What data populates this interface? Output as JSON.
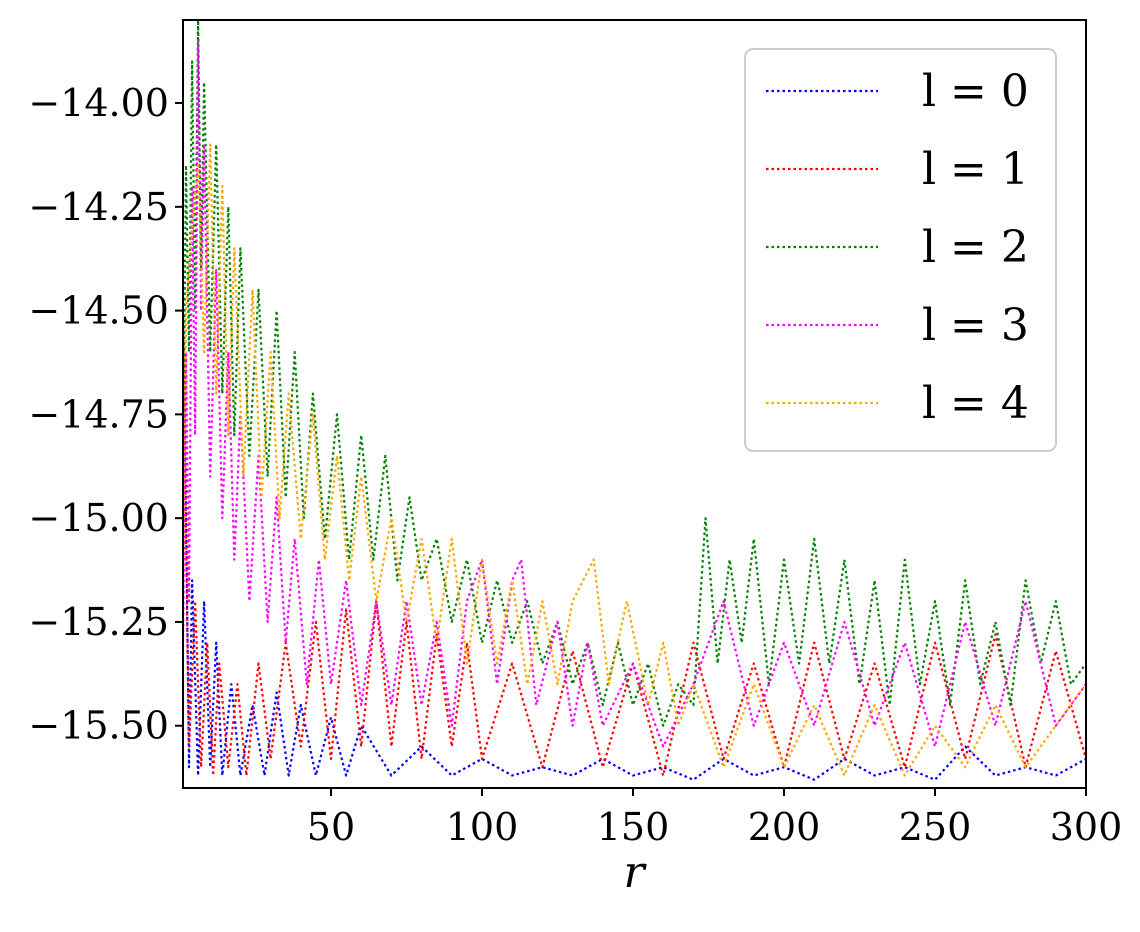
{
  "chart_data": {
    "type": "line",
    "title": "",
    "xlabel": "r",
    "ylabel": "",
    "xlim": [
      1,
      300
    ],
    "ylim": [
      -15.65,
      -13.8
    ],
    "xticks": [
      50,
      100,
      150,
      200,
      250,
      300
    ],
    "xtick_labels": [
      "50",
      "100",
      "150",
      "200",
      "250",
      "300"
    ],
    "yticks": [
      -14.0,
      -14.25,
      -14.5,
      -14.75,
      -15.0,
      -15.25,
      -15.5
    ],
    "ytick_labels": [
      "−14.00",
      "−14.25",
      "−14.50",
      "−14.75",
      "−15.00",
      "−15.25",
      "−15.50"
    ],
    "grid": false,
    "legend_position": "top-right",
    "line_style": "dotted",
    "series": [
      {
        "name": "l = 0",
        "color": "#0000ff",
        "x": [
          1,
          3,
          4,
          6,
          8,
          10,
          12,
          14,
          17,
          20,
          24,
          28,
          32,
          36,
          40,
          45,
          50,
          55,
          60,
          70,
          80,
          90,
          100,
          110,
          120,
          130,
          140,
          150,
          160,
          170,
          180,
          190,
          200,
          210,
          220,
          230,
          240,
          250,
          260,
          270,
          280,
          290,
          300
        ],
        "values": [
          -14.35,
          -15.6,
          -15.15,
          -15.62,
          -15.2,
          -15.6,
          -15.3,
          -15.62,
          -15.4,
          -15.62,
          -15.45,
          -15.62,
          -15.42,
          -15.62,
          -15.45,
          -15.62,
          -15.48,
          -15.62,
          -15.5,
          -15.62,
          -15.55,
          -15.62,
          -15.58,
          -15.62,
          -15.6,
          -15.62,
          -15.58,
          -15.62,
          -15.6,
          -15.63,
          -15.58,
          -15.62,
          -15.6,
          -15.63,
          -15.58,
          -15.62,
          -15.6,
          -15.63,
          -15.55,
          -15.62,
          -15.6,
          -15.62,
          -15.58
        ]
      },
      {
        "name": "l = 1",
        "color": "#ff0000",
        "x": [
          1,
          3,
          5,
          7,
          9,
          11,
          13,
          16,
          19,
          22,
          26,
          30,
          35,
          40,
          45,
          50,
          55,
          60,
          65,
          70,
          75,
          80,
          85,
          90,
          95,
          100,
          110,
          120,
          130,
          140,
          150,
          160,
          170,
          180,
          190,
          200,
          210,
          220,
          230,
          240,
          250,
          260,
          270,
          280,
          290,
          300
        ],
        "values": [
          -14.5,
          -15.55,
          -15.2,
          -15.6,
          -15.3,
          -15.62,
          -15.35,
          -15.6,
          -15.4,
          -15.62,
          -15.35,
          -15.58,
          -15.3,
          -15.55,
          -15.25,
          -15.58,
          -15.22,
          -15.55,
          -15.2,
          -15.55,
          -15.25,
          -15.58,
          -15.28,
          -15.55,
          -15.3,
          -15.58,
          -15.35,
          -15.6,
          -15.32,
          -15.6,
          -15.35,
          -15.62,
          -15.3,
          -15.58,
          -15.35,
          -15.6,
          -15.3,
          -15.58,
          -15.35,
          -15.6,
          -15.3,
          -15.58,
          -15.28,
          -15.6,
          -15.32,
          -15.58
        ]
      },
      {
        "name": "l = 2",
        "color": "#008000",
        "x": [
          1,
          2,
          3,
          4,
          5,
          6,
          7,
          8,
          10,
          12,
          14,
          16,
          18,
          20,
          23,
          26,
          29,
          32,
          35,
          38,
          41,
          44,
          48,
          52,
          56,
          60,
          64,
          68,
          72,
          76,
          80,
          85,
          90,
          95,
          100,
          105,
          110,
          115,
          120,
          125,
          130,
          135,
          140,
          145,
          150,
          155,
          160,
          165,
          170,
          174,
          178,
          182,
          186,
          190,
          195,
          200,
          205,
          210,
          215,
          220,
          225,
          230,
          235,
          240,
          245,
          250,
          255,
          260,
          265,
          270,
          275,
          280,
          285,
          290,
          295,
          300
        ],
        "values": [
          -14.9,
          -14.15,
          -14.6,
          -13.9,
          -14.5,
          -13.8,
          -14.4,
          -13.95,
          -14.6,
          -14.1,
          -14.7,
          -14.25,
          -14.8,
          -14.35,
          -14.85,
          -14.45,
          -14.9,
          -14.5,
          -14.95,
          -14.6,
          -15.0,
          -14.7,
          -15.05,
          -14.75,
          -15.1,
          -14.8,
          -15.1,
          -14.85,
          -15.15,
          -14.95,
          -15.15,
          -15.05,
          -15.25,
          -15.1,
          -15.3,
          -15.15,
          -15.3,
          -15.2,
          -15.35,
          -15.25,
          -15.4,
          -15.3,
          -15.45,
          -15.3,
          -15.45,
          -15.35,
          -15.5,
          -15.4,
          -15.45,
          -15.0,
          -15.35,
          -15.1,
          -15.3,
          -15.05,
          -15.4,
          -15.1,
          -15.35,
          -15.05,
          -15.35,
          -15.1,
          -15.4,
          -15.15,
          -15.45,
          -15.1,
          -15.4,
          -15.2,
          -15.45,
          -15.15,
          -15.4,
          -15.25,
          -15.45,
          -15.15,
          -15.35,
          -15.2,
          -15.4,
          -15.35
        ]
      },
      {
        "name": "l = 3",
        "color": "#ff00ff",
        "x": [
          1,
          2,
          3,
          4,
          5,
          6,
          7,
          8,
          10,
          12,
          14,
          16,
          18,
          20,
          23,
          26,
          29,
          32,
          35,
          38,
          42,
          46,
          50,
          55,
          60,
          65,
          70,
          75,
          80,
          85,
          90,
          95,
          100,
          105,
          110,
          113,
          118,
          125,
          130,
          135,
          140,
          150,
          160,
          170,
          180,
          190,
          200,
          210,
          220,
          230,
          240,
          250,
          260,
          270,
          280,
          290,
          300
        ],
        "values": [
          -15.3,
          -14.6,
          -15.2,
          -14.2,
          -14.8,
          -13.85,
          -14.5,
          -14.1,
          -14.9,
          -14.4,
          -15.0,
          -14.6,
          -15.1,
          -14.75,
          -15.2,
          -14.85,
          -15.25,
          -14.95,
          -15.3,
          -15.05,
          -15.4,
          -15.1,
          -15.4,
          -15.15,
          -15.45,
          -15.2,
          -15.45,
          -15.2,
          -15.45,
          -15.25,
          -15.5,
          -15.2,
          -15.1,
          -15.4,
          -15.15,
          -15.1,
          -15.45,
          -15.25,
          -15.5,
          -15.3,
          -15.5,
          -15.35,
          -15.55,
          -15.4,
          -15.2,
          -15.5,
          -15.3,
          -15.5,
          -15.25,
          -15.5,
          -15.3,
          -15.55,
          -15.25,
          -15.5,
          -15.2,
          -15.5,
          -15.4
        ]
      },
      {
        "name": "l = 4",
        "color": "#ffa500",
        "x": [
          1,
          2,
          4,
          6,
          8,
          10,
          12,
          14,
          16,
          18,
          21,
          24,
          27,
          30,
          33,
          36,
          40,
          44,
          48,
          52,
          56,
          60,
          65,
          70,
          75,
          80,
          85,
          90,
          95,
          100,
          105,
          110,
          115,
          120,
          125,
          130,
          137,
          142,
          148,
          155,
          160,
          165,
          170,
          180,
          190,
          200,
          210,
          220,
          230,
          240,
          250,
          260,
          270,
          280,
          290,
          300
        ],
        "values": [
          -15.2,
          -14.5,
          -14.3,
          -14.15,
          -14.6,
          -14.1,
          -14.7,
          -14.2,
          -14.8,
          -14.35,
          -14.9,
          -14.45,
          -14.95,
          -14.6,
          -15.0,
          -14.7,
          -15.05,
          -14.75,
          -15.1,
          -14.85,
          -15.15,
          -14.9,
          -15.2,
          -15.0,
          -15.25,
          -15.05,
          -15.3,
          -15.05,
          -15.35,
          -15.1,
          -15.35,
          -15.15,
          -15.4,
          -15.2,
          -15.4,
          -15.2,
          -15.1,
          -15.4,
          -15.2,
          -15.45,
          -15.3,
          -15.5,
          -15.4,
          -15.6,
          -15.4,
          -15.6,
          -15.45,
          -15.62,
          -15.45,
          -15.62,
          -15.5,
          -15.6,
          -15.45,
          -15.6,
          -15.5,
          -15.4
        ]
      }
    ]
  }
}
